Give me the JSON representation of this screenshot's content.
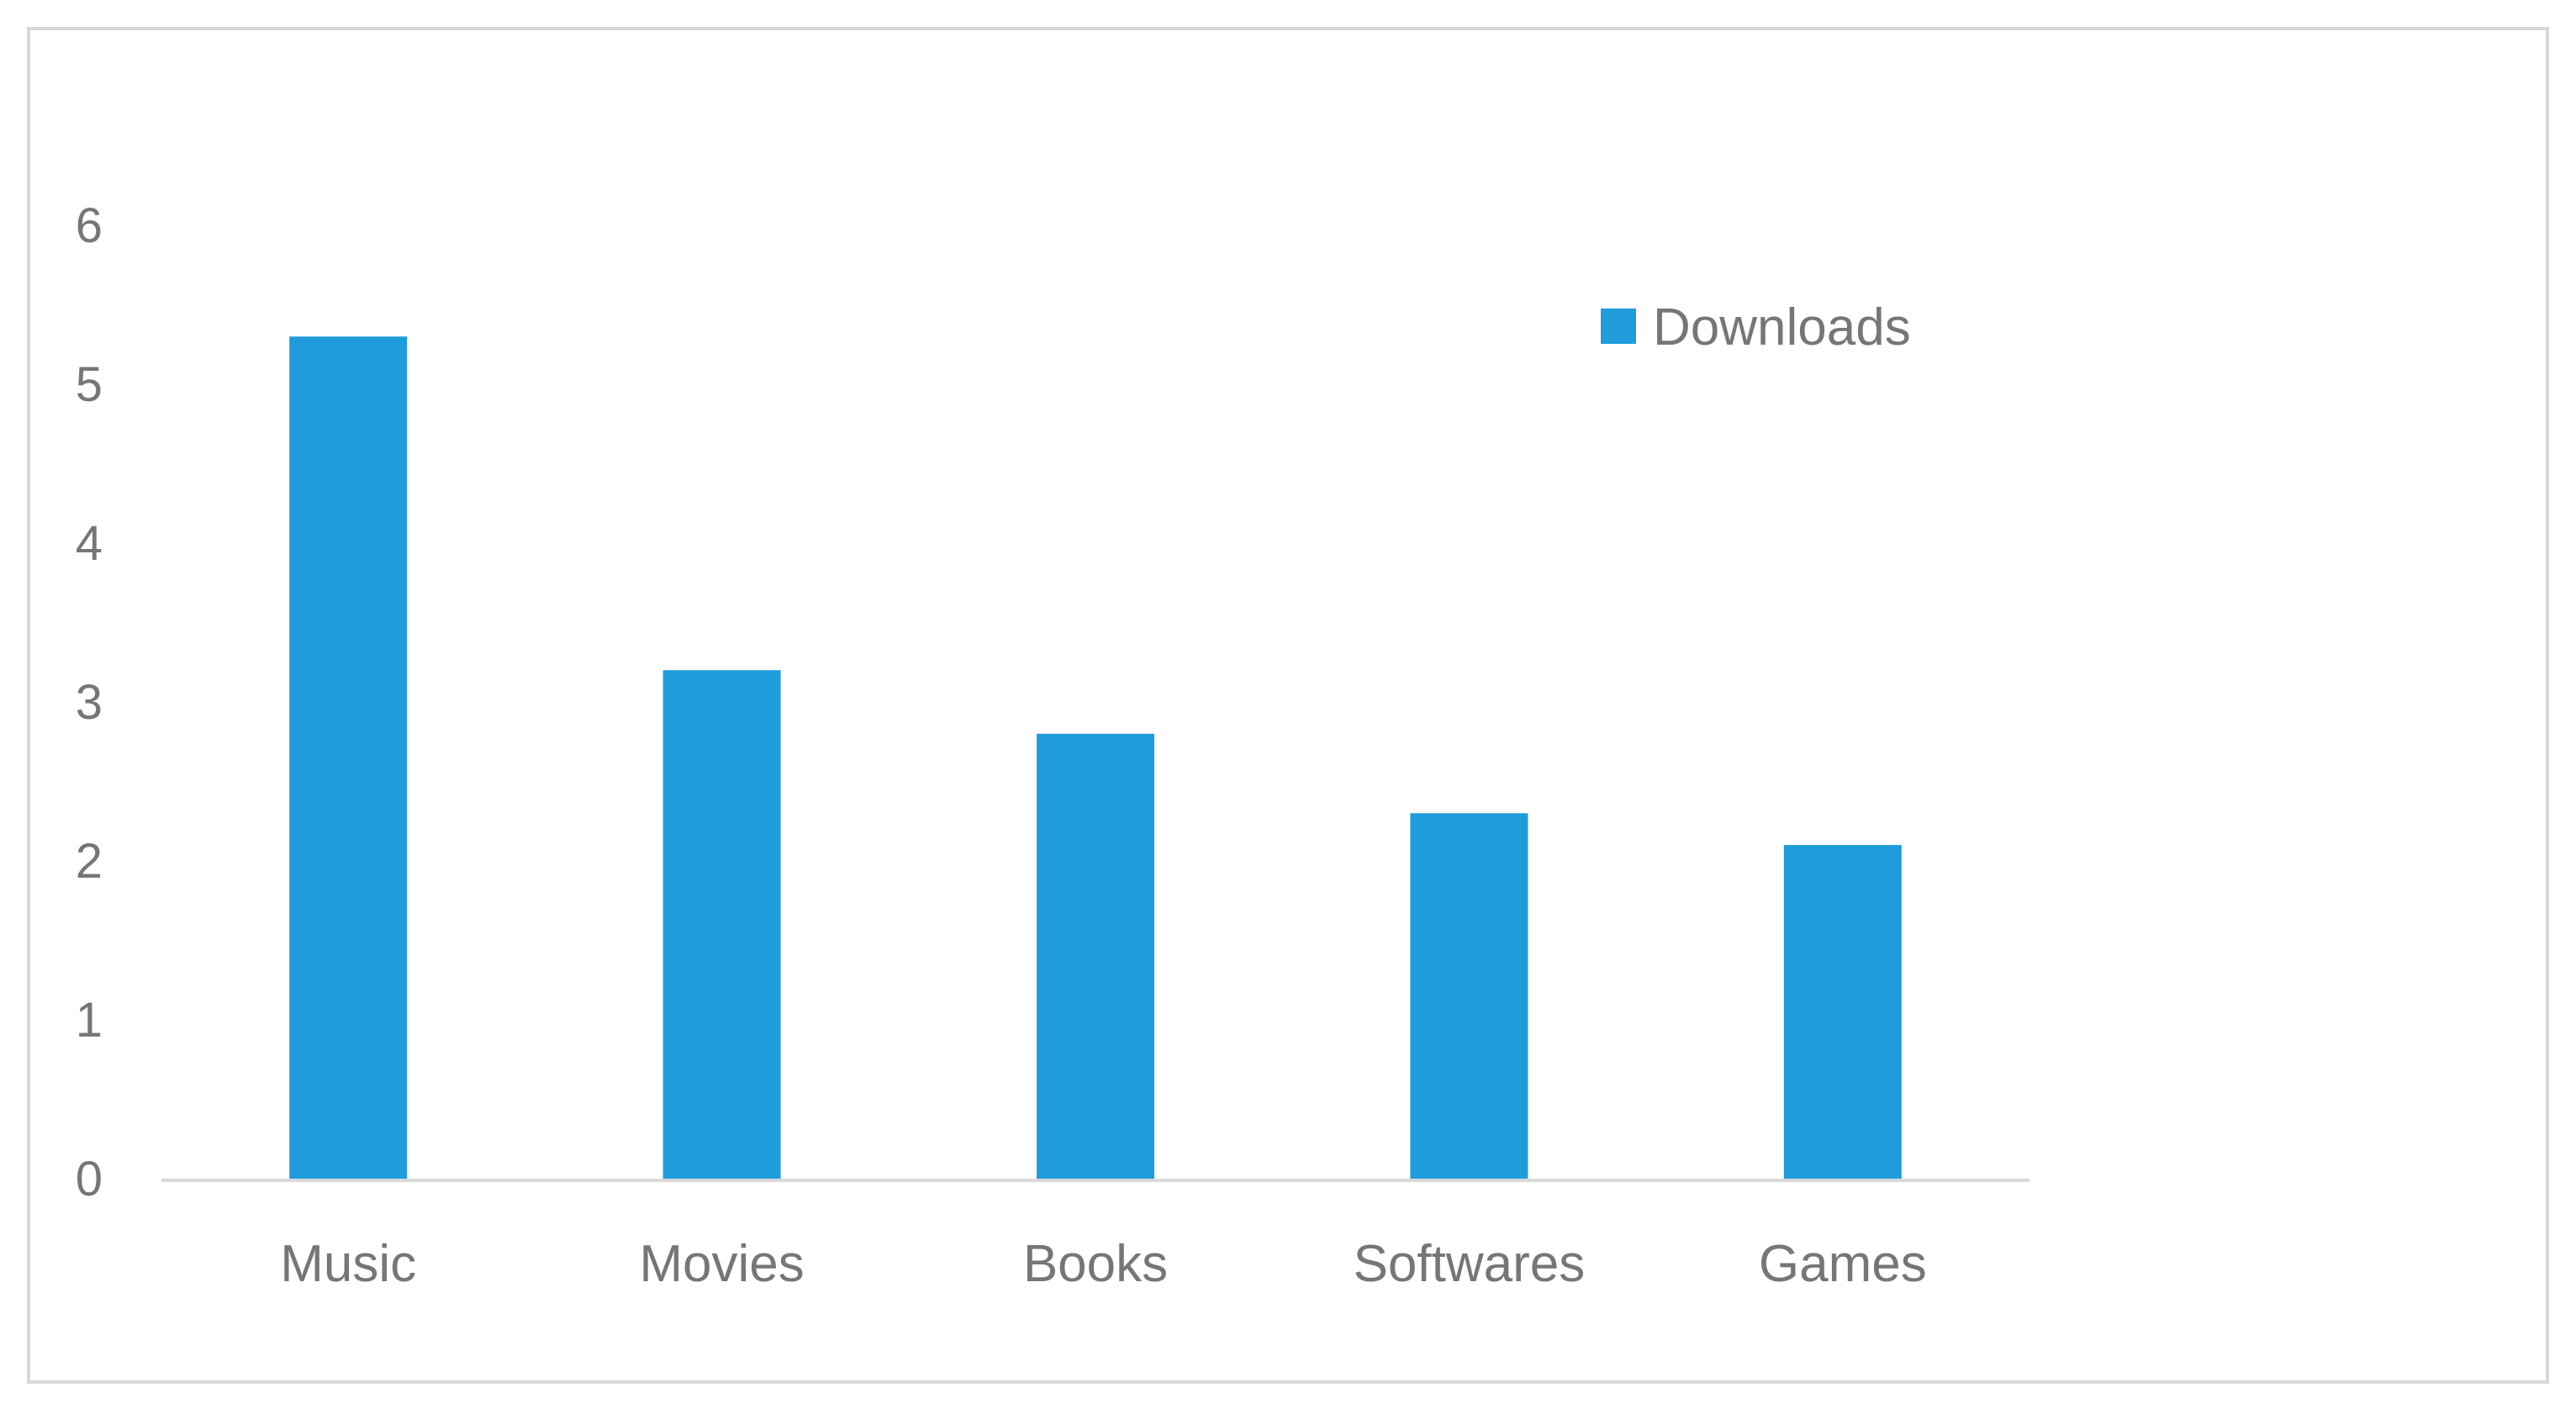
{
  "chart_data": {
    "type": "bar",
    "title": "",
    "xlabel": "",
    "ylabel": "",
    "categories": [
      "Music",
      "Movies",
      "Books",
      "Softwares",
      "Games"
    ],
    "series": [
      {
        "name": "Downloads",
        "values": [
          5.3,
          3.2,
          2.8,
          2.3,
          2.1
        ]
      }
    ],
    "ylim": [
      0,
      6
    ],
    "yticks": [
      "0",
      "1",
      "2",
      "3",
      "4",
      "5",
      "6"
    ],
    "grid": false,
    "legend_position": "top-right",
    "colors": {
      "bar": "#1f9cd9",
      "axis": "#d9d9d9",
      "frame": "#d9d9d9",
      "text": "#767676"
    }
  }
}
